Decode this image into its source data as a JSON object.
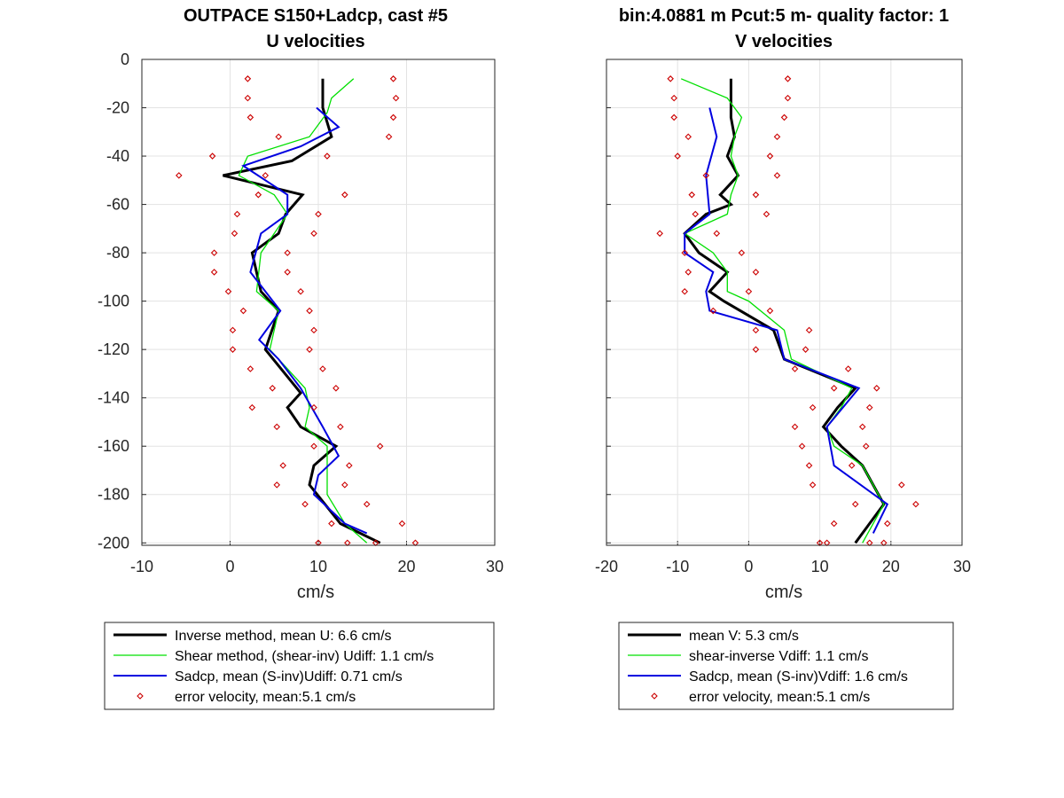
{
  "chart_data": [
    {
      "type": "line",
      "title": "OUTPACE S150+Ladcp, cast #5",
      "subtitle": "U velocities",
      "xlabel": "cm/s",
      "ylabel": "",
      "xlim": [
        -10,
        30
      ],
      "ylim": [
        -201,
        0
      ],
      "xticks": [
        -10,
        0,
        10,
        20,
        30
      ],
      "yticks": [
        0,
        -20,
        -40,
        -60,
        -80,
        -100,
        -120,
        -140,
        -160,
        -180,
        -200
      ],
      "grid": true,
      "legend_position": "below",
      "series": [
        {
          "name": "Inverse method, mean U:  6.6 cm/s",
          "color": "#000000",
          "style": "thick-line",
          "x": [
            10.5,
            10.5,
            11.5,
            7.0,
            -0.8,
            8.2,
            6.3,
            5.5,
            2.5,
            3.5,
            5.5,
            4.0,
            8.0,
            6.5,
            8.0,
            12.0,
            9.5,
            9.0,
            12.5,
            17.0
          ],
          "y": [
            -8,
            -20,
            -32,
            -42,
            -48,
            -56,
            -64,
            -72,
            -80,
            -96,
            -104,
            -120,
            -138,
            -144,
            -152,
            -160,
            -168,
            -176,
            -192,
            -200
          ]
        },
        {
          "name": "Shear method, (shear-inv)  Udiff:  1.1 cm/s",
          "color": "#00e000",
          "style": "thin-line",
          "x": [
            14.0,
            11.5,
            11.0,
            9.0,
            2.0,
            1.0,
            5.0,
            6.5,
            3.5,
            3.0,
            5.5,
            4.5,
            8.5,
            9.0,
            8.5,
            11.0,
            11.0,
            11.0,
            13.0,
            15.5
          ],
          "y": [
            -8,
            -16,
            -22,
            -32,
            -40,
            -48,
            -56,
            -64,
            -80,
            -96,
            -104,
            -120,
            -136,
            -144,
            -152,
            -160,
            -168,
            -180,
            -192,
            -200
          ]
        },
        {
          "name": "Sadcp, mean (S-inv)Udiff: 0.71 cm/s",
          "color": "#0000e0",
          "style": "line",
          "x": [
            9.8,
            12.3,
            8.0,
            1.5,
            6.5,
            6.5,
            3.5,
            2.3,
            5.7,
            3.3,
            5.5,
            8.0,
            10.5,
            12.3,
            10.0,
            9.5,
            13.0,
            15.5
          ],
          "y": [
            -20,
            -28,
            -36,
            -44,
            -56,
            -64,
            -72,
            -88,
            -104,
            -116,
            -124,
            -136,
            -152,
            -164,
            -172,
            -180,
            -192,
            -196
          ]
        },
        {
          "name": "error velocity, mean:5.1 cm/s",
          "color": "#cc0000",
          "style": "markers",
          "x": [
            2.0,
            18.5,
            2.0,
            18.8,
            2.3,
            18.5,
            5.5,
            18.0,
            -2.0,
            11.0,
            -5.8,
            4.0,
            3.2,
            13.0,
            0.8,
            10.0,
            0.5,
            9.5,
            -1.8,
            6.5,
            -1.8,
            6.5,
            -0.2,
            8.0,
            1.5,
            9.0,
            0.3,
            9.5,
            0.3,
            9.0,
            2.3,
            10.5,
            4.8,
            12.0,
            2.5,
            9.5,
            5.3,
            12.5,
            9.5,
            17.0,
            6.0,
            13.5,
            5.3,
            13.0,
            8.5,
            15.5,
            11.5,
            19.5,
            10.0,
            16.5,
            13.3,
            21.0
          ],
          "y": [
            -8,
            -8,
            -16,
            -16,
            -24,
            -24,
            -32,
            -32,
            -40,
            -40,
            -48,
            -48,
            -56,
            -56,
            -64,
            -64,
            -72,
            -72,
            -80,
            -80,
            -88,
            -88,
            -96,
            -96,
            -104,
            -104,
            -112,
            -112,
            -120,
            -120,
            -128,
            -128,
            -136,
            -136,
            -144,
            -144,
            -152,
            -152,
            -160,
            -160,
            -168,
            -168,
            -176,
            -176,
            -184,
            -184,
            -192,
            -192,
            -200,
            -200,
            -200,
            -200
          ]
        }
      ]
    },
    {
      "type": "line",
      "title": "bin:4.0881 m  Pcut:5 m- quality factor:  1",
      "subtitle": "V velocities",
      "xlabel": "cm/s",
      "ylabel": "",
      "xlim": [
        -20,
        30
      ],
      "ylim": [
        -201,
        0
      ],
      "xticks": [
        -20,
        -10,
        0,
        10,
        20,
        30
      ],
      "yticks": [],
      "grid": true,
      "legend_position": "below",
      "series": [
        {
          "name": "mean V:  5.3 cm/s",
          "color": "#000000",
          "style": "thick-line",
          "x": [
            -2.5,
            -2.5,
            -2.0,
            -3.0,
            -1.5,
            -4.0,
            -2.5,
            -6.0,
            -9.0,
            -7.0,
            -3.0,
            -5.5,
            -3.5,
            3.5,
            5.0,
            15.0,
            12.5,
            10.5,
            13.0,
            16.0,
            19.0,
            17.0,
            15.0
          ],
          "y": [
            -8,
            -24,
            -32,
            -40,
            -48,
            -56,
            -60,
            -64,
            -72,
            -80,
            -88,
            -96,
            -100,
            -112,
            -124,
            -136,
            -144,
            -152,
            -160,
            -168,
            -184,
            -192,
            -200
          ]
        },
        {
          "name": "shear-inverse Vdiff:  1.1 cm/s",
          "color": "#00e000",
          "style": "thin-line",
          "x": [
            -9.5,
            -3.0,
            -1.0,
            -2.0,
            -2.5,
            -1.5,
            -2.5,
            -3.0,
            -9.0,
            -5.0,
            -3.0,
            -3.0,
            0.0,
            5.0,
            6.0,
            14.5,
            13.0,
            11.0,
            12.0,
            16.0,
            19.0,
            17.5,
            16.0
          ],
          "y": [
            -8,
            -16,
            -24,
            -32,
            -40,
            -48,
            -56,
            -64,
            -72,
            -80,
            -88,
            -96,
            -100,
            -112,
            -124,
            -136,
            -144,
            -152,
            -160,
            -168,
            -184,
            -192,
            -200
          ]
        },
        {
          "name": "Sadcp, mean (S-inv)Vdiff: 1.6 cm/s",
          "color": "#0000e0",
          "style": "line",
          "x": [
            -5.5,
            -4.5,
            -6.0,
            -5.5,
            -9.0,
            -9.0,
            -5.0,
            -6.0,
            -5.5,
            4.0,
            5.0,
            15.5,
            11.0,
            12.0,
            19.5,
            17.5
          ],
          "y": [
            -20,
            -32,
            -48,
            -64,
            -72,
            -80,
            -88,
            -96,
            -104,
            -112,
            -124,
            -136,
            -152,
            -168,
            -184,
            -196
          ]
        },
        {
          "name": "error velocity, mean:5.1 cm/s",
          "color": "#cc0000",
          "style": "markers",
          "x": [
            -11.0,
            5.5,
            -10.5,
            5.5,
            -10.5,
            5.0,
            -8.5,
            4.0,
            -10.0,
            3.0,
            -6.0,
            4.0,
            -8.0,
            1.0,
            -7.5,
            2.5,
            -12.5,
            -4.5,
            -9.0,
            -1.0,
            -8.5,
            1.0,
            -9.0,
            0.0,
            -5.0,
            3.0,
            1.0,
            8.5,
            1.0,
            8.0,
            6.5,
            14.0,
            12.0,
            18.0,
            9.0,
            17.0,
            6.5,
            16.0,
            7.5,
            16.5,
            8.5,
            14.5,
            9.0,
            21.5,
            15.0,
            23.5,
            12.0,
            19.5,
            10.0,
            17.0,
            11.0,
            19.0
          ],
          "y": [
            -8,
            -8,
            -16,
            -16,
            -24,
            -24,
            -32,
            -32,
            -40,
            -40,
            -48,
            -48,
            -56,
            -56,
            -64,
            -64,
            -72,
            -72,
            -80,
            -80,
            -88,
            -88,
            -96,
            -96,
            -104,
            -104,
            -112,
            -112,
            -120,
            -120,
            -128,
            -128,
            -136,
            -136,
            -144,
            -144,
            -152,
            -152,
            -160,
            -160,
            -168,
            -168,
            -176,
            -176,
            -184,
            -184,
            -192,
            -192,
            -200,
            -200,
            -200,
            -200
          ]
        }
      ]
    }
  ]
}
